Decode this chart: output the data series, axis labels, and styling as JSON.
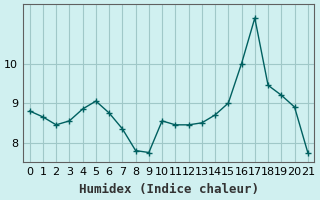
{
  "xlabel": "Humidex (Indice chaleur)",
  "ylabel": "",
  "background_color": "#d0f0f0",
  "line_color": "#006060",
  "marker_color": "#006060",
  "grid_color": "#a0c8c8",
  "x_values": [
    0,
    1,
    2,
    3,
    4,
    5,
    6,
    7,
    8,
    9,
    10,
    11,
    12,
    13,
    14,
    15,
    16,
    17,
    18,
    19,
    20,
    21
  ],
  "y_values": [
    8.8,
    8.65,
    8.45,
    8.55,
    8.85,
    9.05,
    8.75,
    8.35,
    7.8,
    7.75,
    8.55,
    8.45,
    8.45,
    8.5,
    8.7,
    9.0,
    10.0,
    11.15,
    9.45,
    9.2,
    8.9,
    7.75
  ],
  "ylim": [
    7.5,
    11.5
  ],
  "xlim": [
    -0.5,
    21.5
  ],
  "yticks": [
    8,
    9,
    10
  ],
  "xtick_labels": [
    "0",
    "1",
    "2",
    "3",
    "4",
    "5",
    "6",
    "7",
    "8",
    "9",
    "10",
    "11",
    "12",
    "13",
    "14",
    "15",
    "16",
    "17",
    "18",
    "19",
    "20",
    "21"
  ],
  "xlabel_fontsize": 9,
  "tick_fontsize": 8,
  "figsize": [
    3.2,
    2.0
  ],
  "dpi": 100
}
